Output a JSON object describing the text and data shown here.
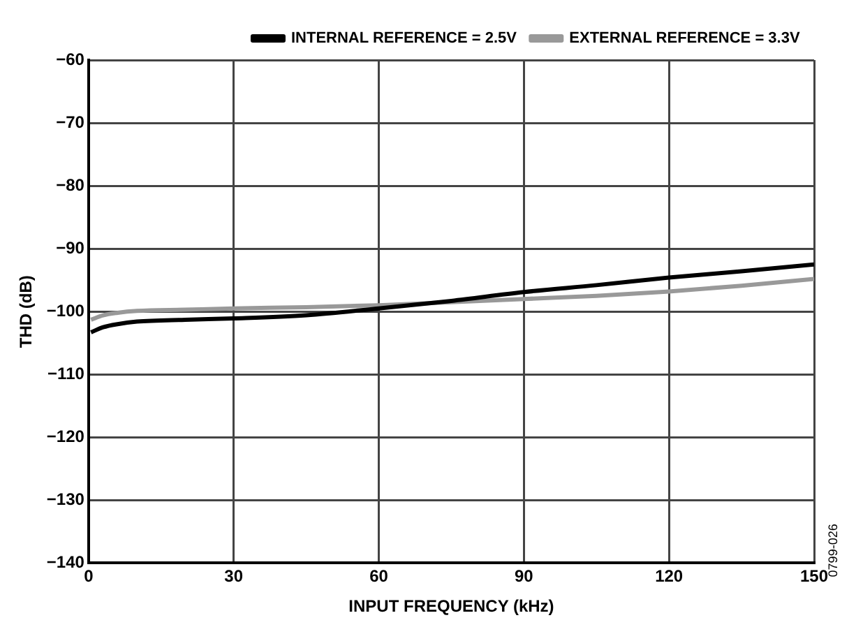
{
  "chart_data": {
    "type": "line",
    "xlabel": "INPUT FREQUENCY (kHz)",
    "ylabel": "THD (dB)",
    "xlim": [
      0,
      150
    ],
    "xticks": [
      0,
      30,
      60,
      90,
      120,
      150
    ],
    "ylim": [
      -140,
      -60
    ],
    "yticks": [
      -140,
      -130,
      -120,
      -110,
      -100,
      -90,
      -80,
      -70,
      -60
    ],
    "grid": true,
    "legend": "top right",
    "marker": "none",
    "line_style": "solid",
    "annotations": [
      "0799-026"
    ],
    "series": [
      {
        "name": "INTERNAL REFERENCE = 2.5V",
        "color": "#000000",
        "x": [
          0.5,
          3,
          6,
          10,
          20,
          30,
          45,
          60,
          75,
          90,
          105,
          120,
          135,
          150
        ],
        "values": [
          -103.3,
          -102.5,
          -102,
          -101.6,
          -101.3,
          -101.1,
          -100.6,
          -99.5,
          -98.3,
          -96.9,
          -95.8,
          -94.6,
          -93.6,
          -92.5
        ]
      },
      {
        "name": "EXTERNAL REFERENCE = 3.3V",
        "color": "#999999",
        "x": [
          0.5,
          3,
          6,
          10,
          20,
          30,
          45,
          60,
          75,
          90,
          105,
          120,
          135,
          150
        ],
        "values": [
          -101.3,
          -100.6,
          -100.2,
          -99.9,
          -99.7,
          -99.5,
          -99.3,
          -99,
          -98.5,
          -98,
          -97.5,
          -96.8,
          -95.9,
          -94.8
        ]
      }
    ]
  }
}
